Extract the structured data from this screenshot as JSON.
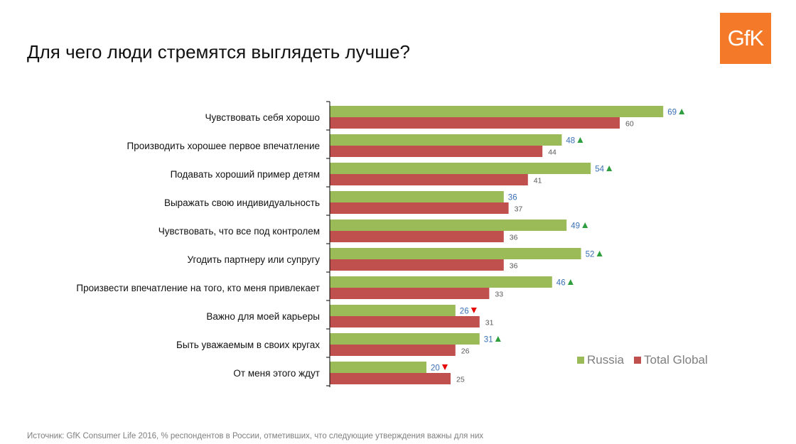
{
  "header": {
    "title": "Для чего люди стремятся выглядеть лучше?",
    "logo_text": "GfK"
  },
  "footer": {
    "source": "Источник: GfK Consumer Life 2016, % респондентов в России, отметивших, что следующие утверждения важны для них"
  },
  "colors": {
    "russia": "#9bbb59",
    "global": "#c0504d",
    "up_marker": "#2e9e3e",
    "down_marker": "#e60000",
    "logo_bg": "#f47a2a"
  },
  "chart_data": {
    "type": "bar",
    "orientation": "horizontal",
    "title": "Для чего люди стремятся выглядеть лучше?",
    "xlabel": "",
    "ylabel": "",
    "xlim": [
      0,
      100
    ],
    "grid": false,
    "legend_position": "right",
    "categories": [
      "Чувствовать себя хорошо",
      "Производить хорошее первое впечатление",
      "Подавать хороший пример детям",
      "Выражать свою индивидуальность",
      "Чувствовать, что все под контролем",
      "Угодить партнеру или супругу",
      "Произвести впечатление на того, кто меня привлекает",
      "Важно для моей карьеры",
      "Быть уважаемым в своих кругах",
      "От меня этого ждут"
    ],
    "series": [
      {
        "name": "Russia",
        "values": [
          69,
          48,
          54,
          36,
          49,
          52,
          46,
          26,
          31,
          20
        ],
        "markers": [
          "up",
          "up",
          "up",
          "",
          "up",
          "up",
          "up",
          "down",
          "up",
          "down"
        ]
      },
      {
        "name": "Total Global",
        "values": [
          60,
          44,
          41,
          37,
          36,
          36,
          33,
          31,
          26,
          25
        ]
      }
    ]
  }
}
